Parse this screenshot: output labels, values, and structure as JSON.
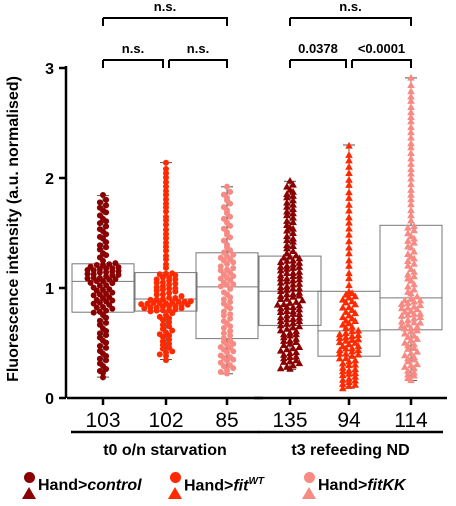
{
  "chart_data": {
    "type": "box-scatter",
    "ylabel": "Fluorescence intensity (a.u. normalised)",
    "ylim": [
      0,
      3
    ],
    "yticks": [
      "0",
      "1",
      "2",
      "3"
    ],
    "groups": [
      {
        "label": "t0 o/n starvation",
        "conditions": [
          0,
          1,
          2
        ]
      },
      {
        "label": "t3 refeeding ND",
        "conditions": [
          3,
          4,
          5
        ]
      }
    ],
    "conditions": [
      {
        "n": "103",
        "genotype": 0,
        "marker": "circle",
        "color": "#8b0000",
        "min": 0.19,
        "q1": 0.78,
        "median": 1.06,
        "q3": 1.22,
        "max": 1.84
      },
      {
        "n": "102",
        "genotype": 1,
        "marker": "circle",
        "color": "#ff2a00",
        "min": 0.35,
        "q1": 0.79,
        "median": 0.9,
        "q3": 1.14,
        "max": 2.14
      },
      {
        "n": "85",
        "genotype": 2,
        "marker": "circle",
        "color": "#f88a84",
        "min": 0.22,
        "q1": 0.54,
        "median": 1.01,
        "q3": 1.32,
        "max": 1.92
      },
      {
        "n": "135",
        "genotype": 0,
        "marker": "triangle",
        "color": "#8b0000",
        "min": 0.26,
        "q1": 0.66,
        "median": 0.97,
        "q3": 1.29,
        "max": 1.97
      },
      {
        "n": "94",
        "genotype": 1,
        "marker": "triangle",
        "color": "#ff2a00",
        "min": 0.09,
        "q1": 0.38,
        "median": 0.61,
        "q3": 0.97,
        "max": 2.3
      },
      {
        "n": "114",
        "genotype": 2,
        "marker": "triangle",
        "color": "#f88a84",
        "min": 0.16,
        "q1": 0.62,
        "median": 0.91,
        "q3": 1.57,
        "max": 2.91
      }
    ],
    "significance": [
      {
        "from": 0,
        "to": 1,
        "label": "n.s."
      },
      {
        "from": 1,
        "to": 2,
        "label": "n.s."
      },
      {
        "from": 0,
        "to": 2,
        "label": "n.s."
      },
      {
        "from": 3,
        "to": 4,
        "label": "0.0378"
      },
      {
        "from": 4,
        "to": 5,
        "label": "<0.0001"
      },
      {
        "from": 3,
        "to": 5,
        "label": "n.s."
      }
    ],
    "legend": [
      {
        "prefix": "Hand>",
        "name": "control",
        "sup": "",
        "color": "#8b0000"
      },
      {
        "prefix": "Hand>",
        "name": "fit",
        "sup": "WT",
        "color": "#ff2a00"
      },
      {
        "prefix": "Hand>",
        "name": "fitKK",
        "sup": "",
        "color": "#f88a84"
      }
    ]
  }
}
